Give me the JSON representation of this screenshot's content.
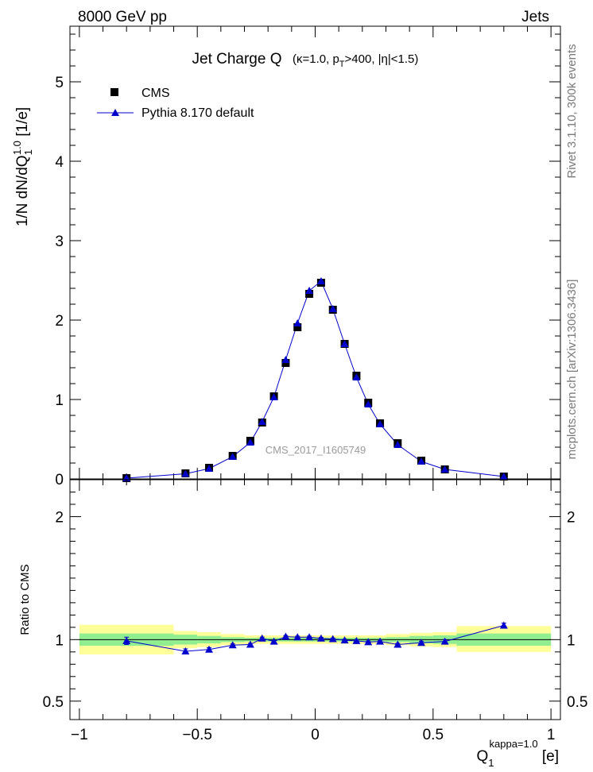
{
  "header": {
    "left": "8000 GeV pp",
    "right": "Jets"
  },
  "side_labels": {
    "rivet": "Rivet 3.1.10,  300k events",
    "mcplots": "mcplots.cern.ch [arXiv:1306.3436]"
  },
  "watermark": "CMS_2017_I1605749",
  "colors": {
    "pythia": "#0000cc",
    "cms": "#000000",
    "band_inner": "#90ee90",
    "band_outer": "#ffff99"
  },
  "chart_data": [
    {
      "type": "line",
      "title": "Jet Charge Q",
      "subtitle": {
        "p1": "(κ=1.0, p",
        "p1_sub": "T",
        "p2": ">400, |η|<1.5)"
      },
      "ylabel": {
        "p1": "1/N dN/dQ",
        "p1_sub": "1",
        "p1_sup": "1.0",
        "p2": " [1/e]"
      },
      "xlim": [
        -1.04,
        1.04
      ],
      "ylim": [
        0,
        5.7
      ],
      "y_ticks": [
        0,
        1,
        2,
        3,
        4,
        5
      ],
      "y_tick_labels": [
        "0",
        "1",
        "2",
        "3",
        "4",
        "5"
      ],
      "legend": {
        "position": "top-left",
        "entries": [
          "CMS",
          "Pythia 8.170 default"
        ]
      },
      "series": [
        {
          "name": "CMS",
          "marker": "square",
          "x": [
            -0.8,
            -0.55,
            -0.45,
            -0.35,
            -0.275,
            -0.225,
            -0.175,
            -0.125,
            -0.075,
            -0.025,
            0.025,
            0.075,
            0.125,
            0.175,
            0.225,
            0.275,
            0.35,
            0.45,
            0.55,
            0.8
          ],
          "values": [
            0.01,
            0.07,
            0.14,
            0.29,
            0.48,
            0.71,
            1.04,
            1.46,
            1.91,
            2.33,
            2.47,
            2.13,
            1.7,
            1.3,
            0.96,
            0.7,
            0.45,
            0.23,
            0.12,
            0.03
          ]
        },
        {
          "name": "Pythia 8.170 default",
          "marker": "triangle",
          "x": [
            -0.8,
            -0.55,
            -0.45,
            -0.35,
            -0.275,
            -0.225,
            -0.175,
            -0.125,
            -0.075,
            -0.025,
            0.025,
            0.075,
            0.125,
            0.175,
            0.225,
            0.275,
            0.35,
            0.45,
            0.55,
            0.8
          ],
          "values": [
            0.01,
            0.065,
            0.13,
            0.28,
            0.46,
            0.72,
            1.03,
            1.5,
            1.96,
            2.37,
            2.49,
            2.14,
            1.7,
            1.28,
            0.94,
            0.69,
            0.43,
            0.22,
            0.12,
            0.03
          ]
        }
      ]
    },
    {
      "type": "line",
      "ylabel": "Ratio to CMS",
      "xlabel": {
        "p1": "Q",
        "p1_sub": "1",
        "p1_sup": "kappa=1.0",
        "p2": " [e]"
      },
      "xlim": [
        -1.04,
        1.04
      ],
      "ylim": [
        0.35,
        2.3
      ],
      "x_ticks": [
        -1,
        -0.5,
        0,
        0.5,
        1
      ],
      "x_tick_labels": [
        "−1",
        "−0.5",
        "0",
        "0.5",
        "1"
      ],
      "y_ticks": [
        0.5,
        1,
        2
      ],
      "y_tick_labels": [
        "0.5",
        "1",
        "2"
      ],
      "bands": [
        {
          "x0": -1.0,
          "x1": -0.6,
          "inner": [
            0.95,
            1.05
          ],
          "outer": [
            0.88,
            1.12
          ]
        },
        {
          "x0": -0.6,
          "x1": -0.5,
          "inner": [
            0.96,
            1.04
          ],
          "outer": [
            0.93,
            1.07
          ]
        },
        {
          "x0": -0.5,
          "x1": -0.4,
          "inner": [
            0.97,
            1.03
          ],
          "outer": [
            0.94,
            1.06
          ]
        },
        {
          "x0": -0.4,
          "x1": -0.3,
          "inner": [
            0.98,
            1.02
          ],
          "outer": [
            0.955,
            1.045
          ]
        },
        {
          "x0": -0.3,
          "x1": 0.3,
          "inner": [
            0.985,
            1.015
          ],
          "outer": [
            0.965,
            1.035
          ]
        },
        {
          "x0": 0.3,
          "x1": 0.4,
          "inner": [
            0.98,
            1.02
          ],
          "outer": [
            0.955,
            1.045
          ]
        },
        {
          "x0": 0.4,
          "x1": 0.5,
          "inner": [
            0.97,
            1.03
          ],
          "outer": [
            0.945,
            1.055
          ]
        },
        {
          "x0": 0.5,
          "x1": 0.6,
          "inner": [
            0.965,
            1.035
          ],
          "outer": [
            0.94,
            1.06
          ]
        },
        {
          "x0": 0.6,
          "x1": 1.0,
          "inner": [
            0.95,
            1.05
          ],
          "outer": [
            0.9,
            1.11
          ]
        }
      ],
      "series": [
        {
          "name": "Pythia 8.170 default",
          "x": [
            -0.8,
            -0.55,
            -0.45,
            -0.35,
            -0.275,
            -0.225,
            -0.175,
            -0.125,
            -0.075,
            -0.025,
            0.025,
            0.075,
            0.125,
            0.175,
            0.225,
            0.275,
            0.35,
            0.45,
            0.55,
            0.8
          ],
          "values": [
            0.99,
            0.905,
            0.92,
            0.955,
            0.96,
            1.01,
            0.985,
            1.025,
            1.02,
            1.02,
            1.01,
            1.005,
            0.995,
            0.99,
            0.98,
            0.985,
            0.96,
            0.975,
            0.985,
            1.115
          ],
          "errors": [
            0.03,
            0.02,
            0.015,
            0.01,
            0.01,
            0.01,
            0.008,
            0.008,
            0.008,
            0.008,
            0.008,
            0.008,
            0.008,
            0.008,
            0.008,
            0.01,
            0.01,
            0.012,
            0.015,
            0.02
          ]
        }
      ]
    }
  ]
}
